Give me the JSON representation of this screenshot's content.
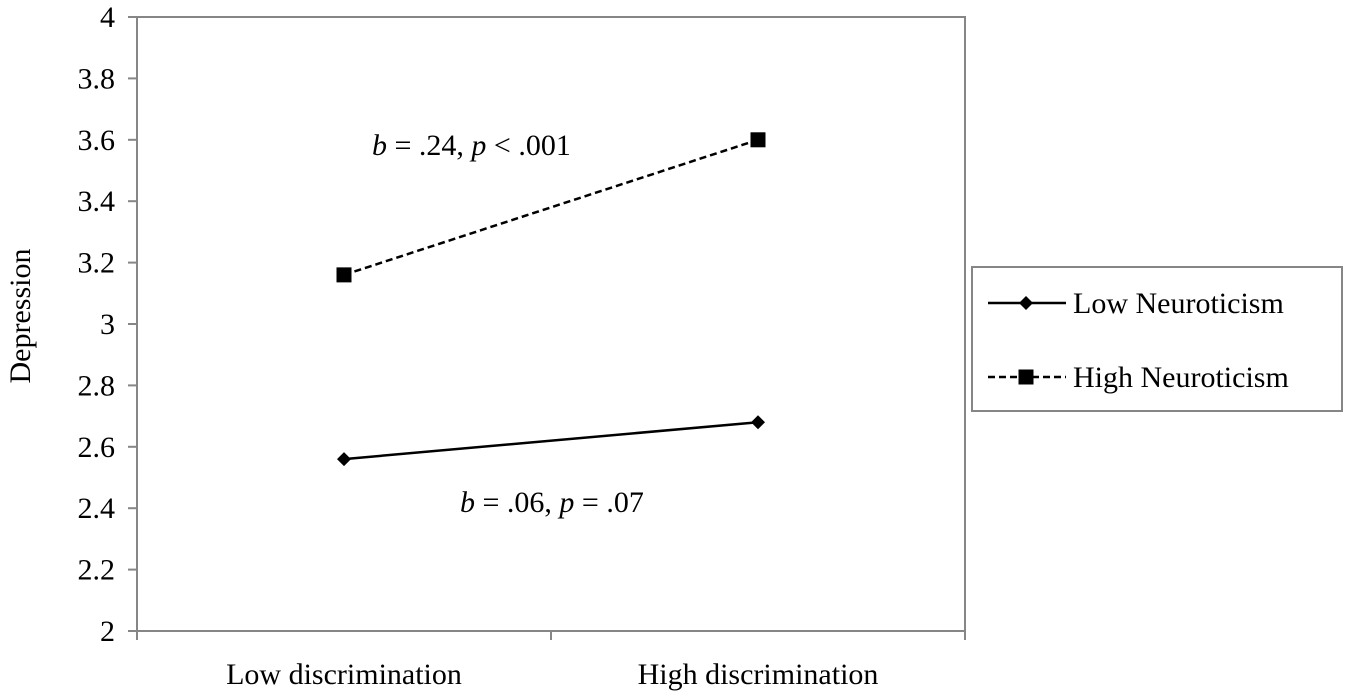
{
  "chart_data": {
    "type": "line",
    "ylabel": "Depression",
    "xlabel": "",
    "categories": [
      "Low discrimination",
      "High discrimination"
    ],
    "ylim": [
      2,
      4
    ],
    "yticks": [
      2,
      2.2,
      2.4,
      2.6,
      2.8,
      3,
      3.2,
      3.4,
      3.6,
      3.8,
      4
    ],
    "ytick_labels": [
      "2",
      "2.2",
      "2.4",
      "2.6",
      "2.8",
      "3",
      "3.2",
      "3.4",
      "3.6",
      "3.8",
      "4"
    ],
    "grid": false,
    "legend_position": "right",
    "series": [
      {
        "name": "Low Neuroticism",
        "values": [
          2.56,
          2.68
        ],
        "line_style": "solid",
        "marker": "diamond",
        "color": "#000000"
      },
      {
        "name": "High Neuroticism",
        "values": [
          3.16,
          3.6
        ],
        "line_style": "dashed",
        "marker": "square",
        "color": "#000000"
      }
    ],
    "annotations": [
      {
        "b_symbol": "b",
        "b_text": " = .24, ",
        "p_symbol": "p",
        "p_text": " < .001",
        "series": "High Neuroticism"
      },
      {
        "b_symbol": "b",
        "b_text": " = .06, ",
        "p_symbol": "p",
        "p_text": " = .07",
        "series": "Low Neuroticism"
      }
    ]
  }
}
